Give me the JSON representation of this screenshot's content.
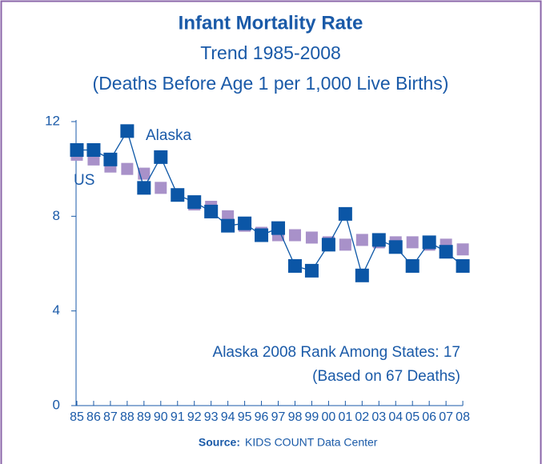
{
  "chart_data": {
    "type": "line",
    "title": "Infant Mortality Rate",
    "subtitle": "Trend 1985-2008",
    "subtitle2": "(Deaths Before Age 1 per 1,000 Live Births)",
    "categories": [
      "85",
      "86",
      "87",
      "88",
      "89",
      "90",
      "91",
      "92",
      "93",
      "94",
      "95",
      "96",
      "97",
      "98",
      "99",
      "00",
      "01",
      "02",
      "03",
      "04",
      "05",
      "06",
      "07",
      "08"
    ],
    "series": [
      {
        "name": "US",
        "color": "#a891c9",
        "values": [
          10.6,
          10.4,
          10.1,
          10.0,
          9.8,
          9.2,
          8.9,
          8.5,
          8.4,
          8.0,
          7.6,
          7.3,
          7.2,
          7.2,
          7.1,
          6.9,
          6.8,
          7.0,
          6.9,
          6.9,
          6.9,
          6.8,
          6.8,
          6.6
        ]
      },
      {
        "name": "Alaska",
        "color": "#0b56a6",
        "values": [
          10.8,
          10.8,
          10.4,
          11.6,
          9.2,
          10.5,
          8.9,
          8.6,
          8.2,
          7.6,
          7.7,
          7.2,
          7.5,
          5.9,
          5.7,
          6.8,
          8.1,
          5.5,
          7.0,
          6.7,
          5.9,
          6.9,
          6.5,
          5.9
        ]
      }
    ],
    "ylim": [
      0,
      12
    ],
    "yticks": [
      0,
      4,
      8,
      12
    ],
    "annotations": [
      "Alaska 2008 Rank Among States: 17",
      "(Based on 67 Deaths)"
    ],
    "source_label": "Source:",
    "source": "KIDS COUNT Data Center"
  }
}
